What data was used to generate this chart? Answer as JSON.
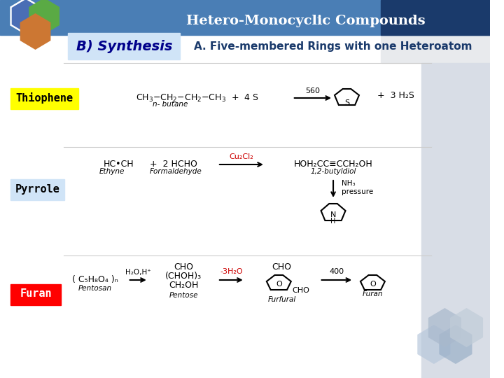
{
  "title": "Hetero-Monocyclic Compounds",
  "subtitle": "A. Five-membered Rings with one Heteroatom",
  "synthesis_label": "B) Synthesis",
  "compounds": [
    "Thiophene",
    "Pyrrole",
    "Furan"
  ],
  "compound_bg_colors": [
    "#ffff00",
    "#d0e4f7",
    "#ff0000"
  ],
  "compound_text_colors": [
    "#000000",
    "#000000",
    "#ffffff"
  ],
  "header_bg": "#4a7eb5",
  "header_dark": "#1a3a6b",
  "header_text_color": "#ffffff",
  "main_bg": "#ffffff",
  "right_panel_bg": "#d8dde6",
  "top_right_bg": "#e8eaed",
  "synthesis_bg": "#d0e4f7",
  "synthesis_text": "#00008b",
  "subtitle_text": "#1a3a6b",
  "hex_colors_left": [
    "#4a6eb5",
    "#5aaa44",
    "#cc7733"
  ],
  "hex_colors_right": [
    "#b8c8dc",
    "#9ab0c8",
    "#a8b8cc",
    "#c0ccd8"
  ],
  "content_image_placeholder": true
}
